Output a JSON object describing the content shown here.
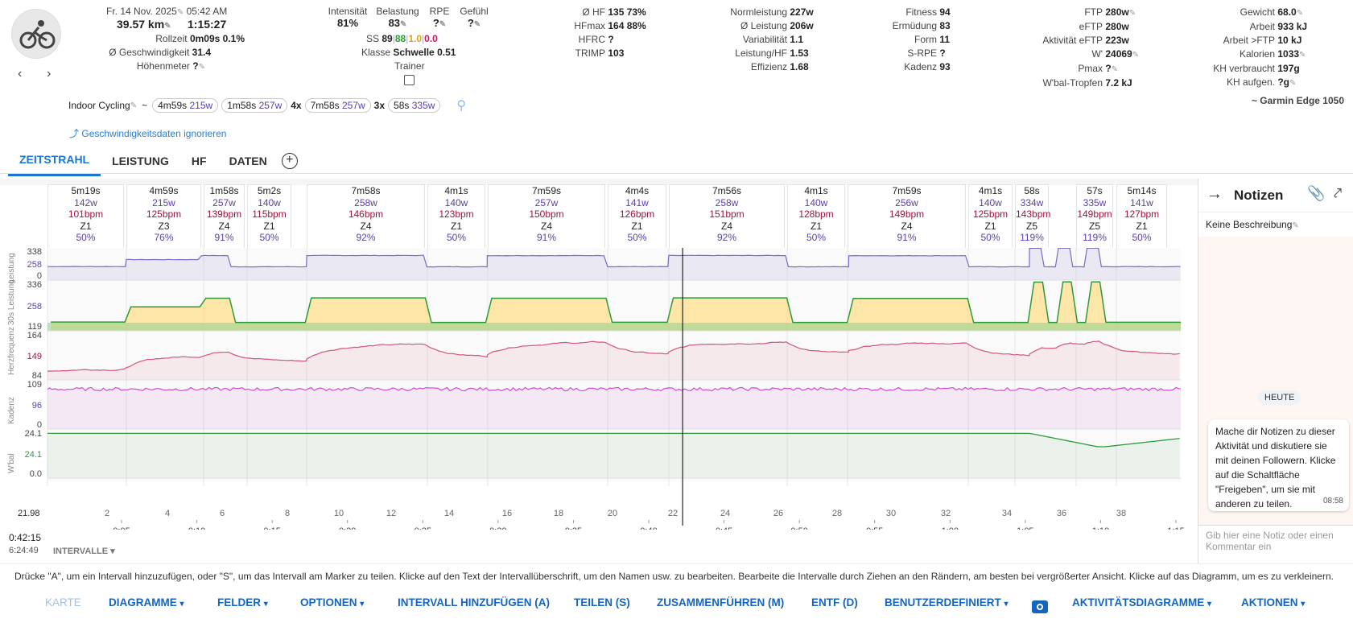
{
  "header": {
    "date": "Fr. 14 Nov. 2025",
    "time": "05:42 AM",
    "distance": "39.57 km",
    "duration": "1:15:27",
    "rollzeit_label": "Rollzeit",
    "rollzeit_value": "0m09s 0.1%",
    "speed_label": "Ø Geschwindigkeit",
    "speed_value": "31.4",
    "elev_label": "Höhenmeter",
    "elev_value": "?",
    "intensity_label": "Intensität",
    "intensity_value": "81%",
    "load_label": "Belastung",
    "load_value": "83",
    "rpe_label": "RPE",
    "rpe_value": "?",
    "feel_label": "Gefühl",
    "feel_value": "?",
    "ss_label": "SS",
    "ss_v1": "89",
    "ss_v2": "88",
    "ss_v3": "1.0",
    "ss_v4": "0.0",
    "klasse_label": "Klasse",
    "klasse_value": "Schwelle 0.51",
    "trainer_label": "Trainer"
  },
  "stats_col1": [
    {
      "label": "Ø HF",
      "value": "135 73%"
    },
    {
      "label": "HFmax",
      "value": "164 88%"
    },
    {
      "label": "HFRC",
      "value": "?"
    },
    {
      "label": "TRIMP",
      "value": "103"
    }
  ],
  "stats_col2": [
    {
      "label": "Normleistung",
      "value": "227w"
    },
    {
      "label": "Ø Leistung",
      "value": "206w"
    },
    {
      "label": "Variabilität",
      "value": "1.1"
    },
    {
      "label": "Leistung/HF",
      "value": "1.53"
    },
    {
      "label": "Effizienz",
      "value": "1.68"
    }
  ],
  "stats_col3": [
    {
      "label": "Fitness",
      "value": "94"
    },
    {
      "label": "Ermüdung",
      "value": "83"
    },
    {
      "label": "Form",
      "value": "11"
    },
    {
      "label": "S-RPE",
      "value": "?"
    },
    {
      "label": "Kadenz",
      "value": "93"
    }
  ],
  "stats_col4": [
    {
      "label": "FTP",
      "value": "280w"
    },
    {
      "label": "eFTP",
      "value": "280w"
    },
    {
      "label": "Aktivität eFTP",
      "value": "223w"
    },
    {
      "label": "W'",
      "value": "24069"
    },
    {
      "label": "Pmax",
      "value": "?"
    },
    {
      "label": "W'bal-Tropfen",
      "value": "7.2 kJ"
    }
  ],
  "stats_col5": [
    {
      "label": "Gewicht",
      "value": "68.0"
    },
    {
      "label": "Arbeit",
      "value": "933 kJ"
    },
    {
      "label": "Arbeit >FTP",
      "value": "10 kJ"
    },
    {
      "label": "Kalorien",
      "value": "1033"
    },
    {
      "label": "KH verbraucht",
      "value": "197g"
    },
    {
      "label": "KH aufgen.",
      "value": "?g"
    }
  ],
  "activity_type": "Indoor Cycling",
  "tilde": "~",
  "chips": [
    {
      "prefix": "",
      "time": "4m59s",
      "watts": "215w"
    },
    {
      "prefix": "",
      "time": "1m58s",
      "watts": "257w"
    },
    {
      "prefix": "4x",
      "time": "7m58s",
      "watts": "257w"
    },
    {
      "prefix": "3x",
      "time": "58s",
      "watts": "335w"
    }
  ],
  "device": "~ Garmin Edge 1050",
  "ignore_speed": "Geschwindigkeitsdaten ignorieren",
  "tabs": [
    "ZEITSTRAHL",
    "LEISTUNG",
    "HF",
    "DATEN"
  ],
  "intervals": [
    {
      "d": "5m19s",
      "w": "142w",
      "h": "101bpm",
      "z": "Z1",
      "p": "50%"
    },
    {
      "d": "4m59s",
      "w": "215w",
      "h": "125bpm",
      "z": "Z3",
      "p": "76%"
    },
    {
      "d": "1m58s",
      "w": "257w",
      "h": "139bpm",
      "z": "Z4",
      "p": "91%"
    },
    {
      "d": "5m2s",
      "w": "140w",
      "h": "115bpm",
      "z": "Z1",
      "p": "50%"
    },
    {
      "d": "7m58s",
      "w": "258w",
      "h": "146bpm",
      "z": "Z4",
      "p": "92%"
    },
    {
      "d": "4m1s",
      "w": "140w",
      "h": "123bpm",
      "z": "Z1",
      "p": "50%"
    },
    {
      "d": "7m59s",
      "w": "257w",
      "h": "150bpm",
      "z": "Z4",
      "p": "91%"
    },
    {
      "d": "4m4s",
      "w": "141w",
      "h": "126bpm",
      "z": "Z1",
      "p": "50%"
    },
    {
      "d": "7m56s",
      "w": "258w",
      "h": "151bpm",
      "z": "Z4",
      "p": "92%"
    },
    {
      "d": "4m1s",
      "w": "140w",
      "h": "128bpm",
      "z": "Z1",
      "p": "50%"
    },
    {
      "d": "7m59s",
      "w": "256w",
      "h": "149bpm",
      "z": "Z4",
      "p": "91%"
    },
    {
      "d": "4m1s",
      "w": "140w",
      "h": "125bpm",
      "z": "Z1",
      "p": "50%"
    },
    {
      "d": "58s",
      "w": "334w",
      "h": "143bpm",
      "z": "Z5",
      "p": "119%"
    },
    {
      "d": "57s",
      "w": "335w",
      "h": "149bpm",
      "z": "Z5",
      "p": "119%"
    },
    {
      "d": "5m14s",
      "w": "141w",
      "h": "127bpm",
      "z": "Z1",
      "p": "50%"
    }
  ],
  "chart_data": {
    "type": "line",
    "panels": [
      {
        "name": "Leistung",
        "ticks": [
          "338",
          "258",
          "0"
        ]
      },
      {
        "name": "Leistung",
        "ticks": [
          "336",
          "258",
          "119"
        ]
      },
      {
        "name": "Herzfrequenz",
        "ticks": [
          "164",
          "149",
          "84"
        ]
      },
      {
        "name": "Kadenz",
        "ticks": [
          "109",
          "96",
          "0"
        ]
      },
      {
        "name": "W'bal",
        "ticks": [
          "24.1",
          "24.1",
          "0.0"
        ]
      }
    ],
    "panel_labels": [
      "Leistung",
      "30s Leistung",
      "Herzfrequenz",
      "Kadenz",
      "W'bal"
    ],
    "distance_ticks": [
      "2",
      "4",
      "6",
      "8",
      "10",
      "12",
      "14",
      "16",
      "18",
      "20",
      "22",
      "24",
      "26",
      "28",
      "30",
      "32",
      "34",
      "36",
      "38"
    ],
    "distance_start": "21.98",
    "time_ticks": [
      "0:05",
      "0:10",
      "0:15",
      "0:20",
      "0:25",
      "0:30",
      "0:35",
      "0:40",
      "0:45",
      "0:50",
      "0:55",
      "1:00",
      "1:05",
      "1:10",
      "1:15"
    ],
    "cursor_time": "0:42:15",
    "cursor_pace": "6:24:49"
  },
  "intervalle_label": "INTERVALLE",
  "notes": {
    "title": "Notizen",
    "no_description": "Keine Beschreibung",
    "today_badge": "HEUTE",
    "bubble_text": "Mache dir Notizen zu dieser Aktivität und diskutiere sie mit deinen Followern. Klicke auf die Schaltfläche \"Freigeben\", um sie mit anderen zu teilen.",
    "bubble_time": "08:58",
    "input_placeholder": "Gib hier eine Notiz oder einen Kommentar ein"
  },
  "hint_text": "Drücke \"A\", um ein Intervall hinzuzufügen, oder \"S\", um das Intervall am Marker zu teilen. Klicke auf den Text der Intervallüberschrift, um den Namen usw. zu bearbeiten. Bearbeite die Intervalle durch Ziehen an den Rändern, am besten bei vergrößerter Ansicht. Klicke auf das Diagramm, um es zu verkleinern.",
  "bottom": {
    "karte": "KARTE",
    "diagramme": "DIAGRAMME",
    "felder": "FELDER",
    "optionen": "OPTIONEN",
    "intervall": "INTERVALL HINZUFÜGEN (A)",
    "teilen": "TEILEN (S)",
    "zusammen": "ZUSAMMENFÜHREN (M)",
    "entf": "ENTF (D)",
    "benutzer": "BENUTZERDEFINIERT",
    "aktivitaet": "AKTIVITÄTSDIAGRAMME",
    "aktionen": "AKTIONEN"
  },
  "colors": {
    "power": "#7b68c8",
    "hr": "#d2557a",
    "cadence": "#d24ad2",
    "wbal": "#2e9b3a",
    "accent": "#1976d2"
  }
}
